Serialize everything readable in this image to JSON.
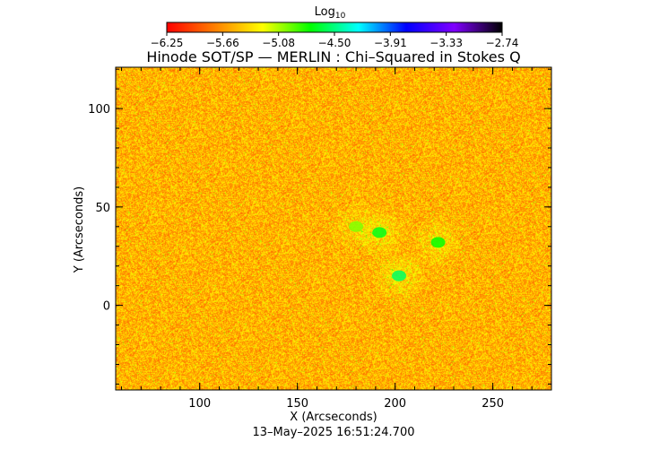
{
  "chart_data": {
    "type": "heatmap",
    "title": "Hinode SOT/SP — MERLIN : Chi–Squared in Stokes Q",
    "colorbar": {
      "label_base": "Log",
      "label_sub": "10",
      "range": [
        -6.25,
        -2.74
      ],
      "ticks": [
        "−6.25",
        "−5.66",
        "−5.08",
        "−4.50",
        "−3.91",
        "−3.33",
        "−2.74"
      ],
      "colormap": [
        "#ff0000",
        "#ff7f00",
        "#ffff00",
        "#00ff00",
        "#00ffff",
        "#0000ff",
        "#8000ff",
        "#000000"
      ]
    },
    "xlabel": "X (Arcseconds)",
    "ylabel": "Y (Arcseconds)",
    "xlim": [
      57,
      280
    ],
    "ylim": [
      -43,
      121
    ],
    "xticks": [
      100,
      150,
      200,
      250
    ],
    "yticks": [
      0,
      50,
      100
    ],
    "background_level": -5.55,
    "features": [
      {
        "x": 192,
        "y": 37,
        "value": -4.7
      },
      {
        "x": 202,
        "y": 15,
        "value": -4.55
      },
      {
        "x": 222,
        "y": 32,
        "value": -4.75
      },
      {
        "x": 180,
        "y": 40,
        "value": -5.0
      }
    ],
    "timestamp": "13–May–2025 16:51:24.700"
  },
  "colors": {
    "background": "#ffffff",
    "axes": "#000000"
  }
}
